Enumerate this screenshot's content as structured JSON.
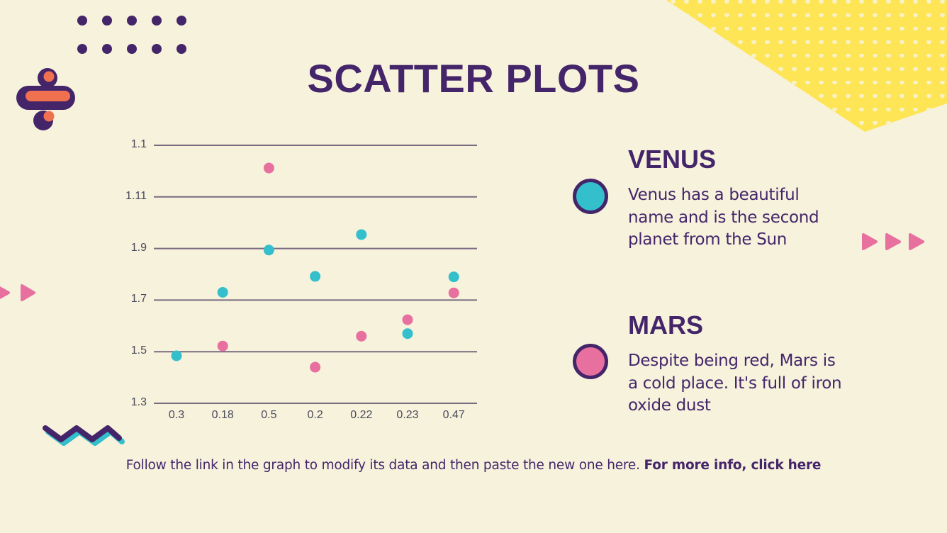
{
  "slide": {
    "title": "SCATTER PLOTS",
    "background_color": "#f6f2dc",
    "text_color": "#45256a"
  },
  "legend": [
    {
      "name": "VENUS",
      "color": "#33bfcb",
      "description": "Venus has a beautiful name and is the second planet from the Sun"
    },
    {
      "name": "MARS",
      "color": "#e8709f",
      "description": "Despite being red, Mars is a cold place. It's full of iron oxide dust"
    }
  ],
  "footer": {
    "text": "Follow the link in the graph to modify its data and then paste the new one here.",
    "link_text": "For more info, click here"
  },
  "colors": {
    "primary": "#45256a",
    "teal": "#33bfcb",
    "pink": "#e8709f",
    "yellow": "#fde555",
    "orange": "#f0714f",
    "gridline": "#7a6a80",
    "tick_text": "#4a4a5a"
  },
  "chart_data": {
    "type": "scatter",
    "title": "SCATTER PLOTS",
    "xlabel": "",
    "ylabel": "",
    "categories": [
      "0.3",
      "0.18",
      "0.5",
      "0.2",
      "0.22",
      "0.23",
      "0.47"
    ],
    "y_tick_labels_top_to_bottom": [
      "1.1",
      "1.11",
      "1.9",
      "1.7",
      "1.5",
      "1.3"
    ],
    "y_tick_labels_bottom_to_top": [
      "1.3",
      "1.5",
      "1.7",
      "1.9",
      "1.11",
      "1.1"
    ],
    "y_value_note": "values given as fractional gridline index from bottom (0 = '1.3', 1 = '1.5', 2 = '1.7', 3 = '1.9', 4 = '1.11', 5 = '1.1')",
    "grid": true,
    "legend_position": "right",
    "series": [
      {
        "name": "Venus",
        "color": "#33bfcb",
        "x": [
          "0.3",
          "0.18",
          "0.5",
          "0.2",
          "0.22",
          "0.23",
          "0.47"
        ],
        "values": [
          0.92,
          2.15,
          2.97,
          2.46,
          3.27,
          1.35,
          2.45
        ]
      },
      {
        "name": "Mars",
        "color": "#e8709f",
        "x": [
          "0.18",
          "0.5",
          "0.2",
          "0.22",
          "0.23",
          "0.47"
        ],
        "values": [
          1.11,
          4.56,
          0.7,
          1.3,
          1.62,
          2.14
        ]
      }
    ]
  }
}
